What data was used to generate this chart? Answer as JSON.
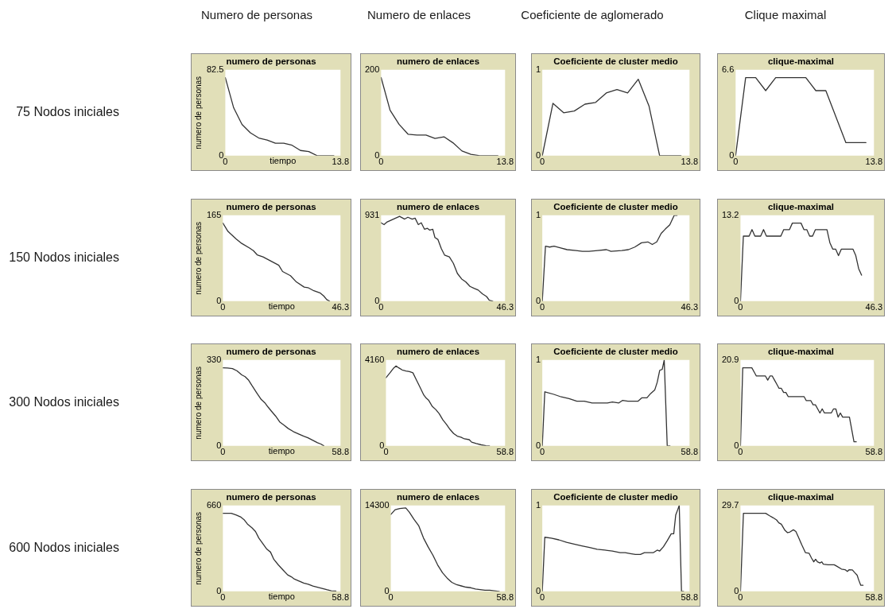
{
  "chart_data": [
    {
      "type": "other",
      "annotations": [
        "Numero de personas",
        "Numero de enlaces",
        "Coeficiente de aglomerado",
        "Clique maximal"
      ]
    },
    {
      "type": "other",
      "annotations": [
        "75 Nodos iniciales",
        "150 Nodos iniciales",
        "300 Nodos iniciales",
        "600 Nodos iniciales"
      ]
    },
    {
      "type": "line",
      "title": "numero de personas",
      "xlabel": "tiempo",
      "ylabel": "numero de personas",
      "color": "#333333",
      "x": [
        0,
        1,
        2,
        3,
        4,
        5,
        6,
        7,
        8,
        9,
        10,
        11,
        12,
        13
      ],
      "values": [
        75,
        46,
        30,
        22,
        17,
        15,
        12,
        12,
        10,
        5,
        4,
        0,
        0,
        0
      ],
      "xlim": [
        0,
        13.8
      ],
      "xticks": [
        0,
        13.8
      ],
      "ylim": [
        0,
        82.5
      ],
      "yticks": [
        0,
        82.5
      ]
    },
    {
      "type": "line",
      "title": "numero de enlaces",
      "color": "#333333",
      "x": [
        0,
        1,
        2,
        3,
        4,
        5,
        6,
        7,
        8,
        9,
        10,
        11,
        12,
        13
      ],
      "values": [
        182,
        106,
        73,
        50,
        48,
        48,
        40,
        44,
        30,
        11,
        3,
        0,
        0,
        0
      ],
      "xlim": [
        0,
        13.8
      ],
      "xticks": [
        0,
        13.8
      ],
      "ylim": [
        0,
        200
      ],
      "yticks": [
        0,
        200
      ]
    },
    {
      "type": "line",
      "title": "Coeficiente de cluster medio",
      "color": "#333333",
      "x": [
        0,
        1,
        2,
        3,
        4,
        5,
        6,
        7,
        8,
        9,
        10,
        11,
        12,
        13
      ],
      "values": [
        0,
        0.61,
        0.5,
        0.52,
        0.6,
        0.62,
        0.73,
        0.77,
        0.73,
        0.89,
        0.58,
        0,
        0,
        0
      ],
      "xlim": [
        0,
        13.8
      ],
      "xticks": [
        0,
        13.8
      ],
      "ylim": [
        0,
        1
      ],
      "yticks": [
        0,
        1
      ]
    },
    {
      "type": "line",
      "title": "clique-maximal",
      "color": "#333333",
      "x": [
        0,
        1,
        2,
        3,
        4,
        5,
        6,
        7,
        8,
        9,
        10,
        11,
        12,
        13
      ],
      "values": [
        0,
        6,
        6,
        5,
        6,
        6,
        6,
        6,
        5,
        5,
        3,
        1,
        1,
        1
      ],
      "xlim": [
        0,
        13.8
      ],
      "xticks": [
        0,
        13.8
      ],
      "ylim": [
        0,
        6.6
      ],
      "yticks": [
        0,
        6.6
      ]
    },
    {
      "type": "line",
      "title": "numero de personas",
      "xlabel": "tiempo",
      "ylabel": "numero de personas",
      "color": "#333333",
      "x": [
        0,
        2,
        5.1,
        7.4,
        10.5,
        12,
        13.5,
        15.8,
        18.9,
        22,
        23.5,
        26.6,
        28.9,
        32,
        33.5,
        35.8,
        38.2,
        39.7,
        40.9,
        42
      ],
      "values": [
        150,
        134,
        120,
        111,
        102,
        97,
        89,
        85,
        77,
        69,
        57,
        49,
        37,
        27,
        26,
        20,
        16,
        10,
        3,
        0
      ],
      "xlim": [
        0,
        46.3
      ],
      "xticks": [
        0,
        46.3
      ],
      "ylim": [
        0,
        165
      ],
      "yticks": [
        0,
        165
      ]
    },
    {
      "type": "line",
      "title": "numero de enlaces",
      "color": "#333333",
      "x": [
        0,
        1.1,
        2.3,
        4.6,
        6.9,
        8.8,
        10,
        11.6,
        12.7,
        13.9,
        15,
        16.2,
        17.3,
        18.2,
        19.3,
        20.1,
        21.2,
        22.5,
        23.7,
        25.5,
        27,
        28.5,
        30.1,
        31.6,
        33.2,
        34.7,
        36.3,
        37.8,
        39.4,
        40.4,
        41.7
      ],
      "values": [
        850,
        830,
        860,
        890,
        920,
        890,
        910,
        890,
        900,
        830,
        850,
        780,
        790,
        770,
        780,
        690,
        670,
        570,
        500,
        480,
        410,
        300,
        240,
        210,
        160,
        140,
        120,
        80,
        50,
        10,
        0
      ],
      "xlim": [
        0,
        46.3
      ],
      "xticks": [
        0,
        46.3
      ],
      "ylim": [
        0,
        931
      ],
      "yticks": [
        0,
        931
      ]
    },
    {
      "type": "line",
      "title": "Coeficiente de cluster medio",
      "color": "#333333",
      "x": [
        0,
        1,
        2.3,
        3.7,
        5.8,
        7.8,
        10.6,
        12.6,
        14.7,
        17.4,
        20.2,
        21.6,
        25,
        27.1,
        29.1,
        31.2,
        33.2,
        34.6,
        36,
        37.4,
        38.7,
        40.1,
        41.5,
        42.4
      ],
      "values": [
        0,
        0.64,
        0.63,
        0.64,
        0.62,
        0.6,
        0.59,
        0.58,
        0.58,
        0.59,
        0.6,
        0.58,
        0.59,
        0.6,
        0.63,
        0.68,
        0.69,
        0.66,
        0.69,
        0.79,
        0.84,
        0.89,
        1,
        1
      ],
      "xlim": [
        0,
        46.3
      ],
      "xticks": [
        0,
        46.3
      ],
      "ylim": [
        0,
        1
      ],
      "yticks": [
        0,
        1
      ]
    },
    {
      "type": "line",
      "title": "clique-maximal",
      "color": "#333333",
      "x": [
        0,
        1,
        2,
        3,
        4,
        5,
        6,
        7,
        8,
        9,
        10,
        11,
        12,
        13,
        14,
        15,
        16,
        17,
        18,
        19,
        20,
        21,
        22,
        23,
        24,
        25,
        26,
        27,
        28,
        29,
        30,
        31,
        32,
        33,
        34,
        35,
        36,
        37,
        38,
        39,
        40,
        41,
        42
      ],
      "values": [
        0,
        10,
        10,
        10,
        11,
        10,
        10,
        10,
        11,
        10,
        10,
        10,
        10,
        10,
        10,
        11,
        11,
        11,
        12,
        12,
        12,
        12,
        11,
        11,
        10,
        10,
        11,
        11,
        11,
        11,
        11,
        9,
        8,
        8,
        7,
        8,
        8,
        8,
        8,
        8,
        7,
        5,
        4
      ],
      "xlim": [
        0,
        46.3
      ],
      "xticks": [
        0,
        46.3
      ],
      "ylim": [
        0,
        13.2
      ],
      "yticks": [
        0,
        13.2
      ]
    },
    {
      "type": "line",
      "title": "numero de personas",
      "xlabel": "tiempo",
      "ylabel": "numero de personas",
      "color": "#333333",
      "x": [
        0,
        2.3,
        4.8,
        7.1,
        9.4,
        11.1,
        12.9,
        14.6,
        16.9,
        19.2,
        20.9,
        22.6,
        24.3,
        26.4,
        28.4,
        30.7,
        32.6,
        35.2,
        38.1,
        40.4,
        42.5,
        45,
        47.3,
        49,
        50.5
      ],
      "values": [
        300,
        299,
        297,
        288,
        273,
        266,
        252,
        231,
        204,
        178,
        166,
        149,
        133,
        114,
        92,
        79,
        67,
        55,
        45,
        37,
        31,
        21,
        12,
        7,
        0
      ],
      "xlim": [
        0,
        58.8
      ],
      "xticks": [
        0,
        58.8
      ],
      "ylim": [
        0,
        330
      ],
      "yticks": [
        0,
        330
      ]
    },
    {
      "type": "line",
      "title": "numero de enlaces",
      "color": "#333333",
      "x": [
        0,
        2,
        3.9,
        5,
        6.3,
        8,
        9.8,
        11.6,
        13.3,
        15.1,
        16.9,
        18.7,
        19.9,
        21,
        22.8,
        24.6,
        26.3,
        28.1,
        29.9,
        31.6,
        33.4,
        35.2,
        37,
        38.7,
        41.1,
        42.3,
        44.6,
        47,
        49.4,
        51.1
      ],
      "values": [
        3300,
        3540,
        3780,
        3870,
        3780,
        3680,
        3630,
        3600,
        3540,
        3180,
        2820,
        2460,
        2310,
        2220,
        1920,
        1760,
        1560,
        1260,
        1040,
        800,
        600,
        470,
        420,
        340,
        300,
        180,
        110,
        50,
        10,
        0
      ],
      "xlim": [
        0,
        58.8
      ],
      "xticks": [
        0,
        58.8
      ],
      "ylim": [
        0,
        4160
      ],
      "yticks": [
        0,
        4160
      ]
    },
    {
      "type": "line",
      "title": "Coeficiente de cluster medio",
      "color": "#333333",
      "x": [
        0,
        1,
        4.6,
        7.6,
        10.7,
        13.8,
        16.8,
        19.9,
        23,
        26,
        28,
        30.6,
        32.1,
        34.2,
        36.2,
        38.2,
        39.8,
        41.8,
        43.3,
        44.9,
        45.9,
        46.9,
        47.9,
        48.7,
        49.9,
        51
      ],
      "values": [
        0,
        0.63,
        0.6,
        0.57,
        0.55,
        0.52,
        0.52,
        0.5,
        0.5,
        0.5,
        0.51,
        0.5,
        0.53,
        0.52,
        0.52,
        0.52,
        0.56,
        0.56,
        0.61,
        0.65,
        0.74,
        0.88,
        0.89,
        1,
        0,
        0
      ],
      "xlim": [
        0,
        58.8
      ],
      "xticks": [
        0,
        58.8
      ],
      "ylim": [
        0,
        1
      ],
      "yticks": [
        0,
        1
      ]
    },
    {
      "type": "line",
      "title": "clique-maximal",
      "color": "#333333",
      "x": [
        0,
        1,
        2,
        3,
        4,
        5,
        6,
        7,
        8,
        9,
        10,
        11,
        12,
        13,
        14,
        15,
        16,
        17,
        18,
        19,
        20,
        21,
        22,
        23,
        24,
        25,
        26,
        27,
        28,
        29,
        30,
        31,
        32,
        33,
        34,
        35,
        36,
        37,
        38,
        39,
        40,
        41,
        42,
        43,
        44,
        45,
        46,
        47,
        48,
        49,
        50,
        51
      ],
      "values": [
        0,
        19,
        19,
        19,
        19,
        19,
        18,
        17,
        17,
        17,
        17,
        17,
        16,
        17,
        17,
        16,
        15,
        14,
        14,
        13,
        13,
        12,
        12,
        12,
        12,
        12,
        12,
        12,
        12,
        11,
        11,
        11,
        10,
        10,
        9,
        8,
        9,
        8,
        8,
        8,
        8,
        9,
        9,
        7,
        8,
        7,
        7,
        7,
        7,
        4,
        1,
        1
      ],
      "xlim": [
        0,
        58.8
      ],
      "xticks": [
        0,
        58.8
      ],
      "ylim": [
        0,
        20.9
      ],
      "yticks": [
        0,
        20.9
      ]
    },
    {
      "type": "line",
      "title": "numero de personas",
      "xlabel": "tiempo",
      "ylabel": "numero de personas",
      "color": "#333333",
      "x": [
        0,
        4.2,
        6.5,
        8.8,
        10.6,
        12.3,
        14.6,
        16.3,
        18,
        20,
        22,
        23.8,
        25.5,
        27.8,
        30.1,
        32.4,
        34.1,
        35.8,
        38.1,
        40.4,
        42.7,
        45,
        47.3,
        49.6,
        51.9,
        54.2,
        56.5
      ],
      "values": [
        600,
        600,
        588,
        573,
        551,
        517,
        488,
        460,
        409,
        366,
        324,
        302,
        245,
        202,
        164,
        126,
        113,
        94,
        79,
        64,
        55,
        41,
        32,
        23,
        13,
        4,
        2
      ],
      "xlim": [
        0,
        58.8
      ],
      "xticks": [
        0,
        58.8
      ],
      "ylim": [
        0,
        660
      ],
      "yticks": [
        0,
        660
      ]
    },
    {
      "type": "line",
      "title": "numero de enlaces",
      "color": "#333333",
      "x": [
        0,
        2.2,
        4.6,
        7.7,
        9.5,
        11.9,
        14.4,
        16.8,
        19.2,
        21.7,
        24.1,
        26.6,
        29,
        31.4,
        33.9,
        36.3,
        38.7,
        41.2,
        43.6,
        46,
        48.5,
        50.9,
        53.3,
        55.8
      ],
      "values": [
        12800,
        13600,
        13800,
        13900,
        13200,
        12000,
        10900,
        8900,
        7400,
        6000,
        4400,
        3100,
        2200,
        1500,
        1100,
        900,
        700,
        600,
        400,
        300,
        200,
        200,
        100,
        0
      ],
      "xlim": [
        0,
        58.8
      ],
      "xticks": [
        0,
        58.8
      ],
      "ylim": [
        0,
        14300
      ],
      "yticks": [
        0,
        14300
      ]
    },
    {
      "type": "line",
      "title": "Coeficiente de cluster medio",
      "color": "#333333",
      "x": [
        0,
        1,
        3.6,
        6.6,
        9.7,
        12.7,
        15.8,
        18.9,
        21.9,
        25,
        28,
        31.1,
        33.1,
        35.2,
        37.2,
        39.2,
        40.8,
        42.3,
        44.3,
        45.9,
        46.9,
        48.4,
        49.9,
        51.5,
        52.5,
        53.3,
        54.2,
        54.7,
        55.6,
        56.4
      ],
      "values": [
        0,
        0.63,
        0.62,
        0.6,
        0.57,
        0.55,
        0.53,
        0.51,
        0.49,
        0.48,
        0.47,
        0.45,
        0.45,
        0.44,
        0.43,
        0.43,
        0.45,
        0.45,
        0.45,
        0.48,
        0.47,
        0.52,
        0.59,
        0.67,
        0.67,
        0.89,
        0.96,
        1,
        0,
        0
      ],
      "xlim": [
        0,
        58.8
      ],
      "xticks": [
        0,
        58.8
      ],
      "ylim": [
        0,
        1
      ],
      "yticks": [
        0,
        1
      ]
    },
    {
      "type": "line",
      "title": "clique-maximal",
      "color": "#333333",
      "x": [
        0,
        1.3,
        11.1,
        12.7,
        14.3,
        15.9,
        16.9,
        18,
        19.6,
        20.7,
        21.7,
        23.3,
        24.4,
        25.4,
        27,
        28.6,
        30.2,
        31.3,
        32.3,
        33.1,
        33.9,
        35,
        35.8,
        36.5,
        38.6,
        41.3,
        42.4,
        44.5,
        46.1,
        47.1,
        47.9,
        49.3,
        50.3,
        51.4,
        52.1,
        53,
        54
      ],
      "values": [
        0,
        27,
        27,
        26.2,
        25.5,
        24.7,
        23.7,
        23.2,
        21.1,
        20.3,
        20.5,
        21.3,
        20.7,
        19,
        16.1,
        13.4,
        13.2,
        11.5,
        10.2,
        11.1,
        10.2,
        9.8,
        10.2,
        9.4,
        9.2,
        9.2,
        8.7,
        7.7,
        7.5,
        6.9,
        7.5,
        7.4,
        6.5,
        5.6,
        3.9,
        2.1,
        2.1
      ],
      "xlim": [
        0,
        58.8
      ],
      "xticks": [
        0,
        58.8
      ],
      "ylim": [
        0,
        29.7
      ],
      "yticks": [
        0,
        29.7
      ]
    }
  ]
}
